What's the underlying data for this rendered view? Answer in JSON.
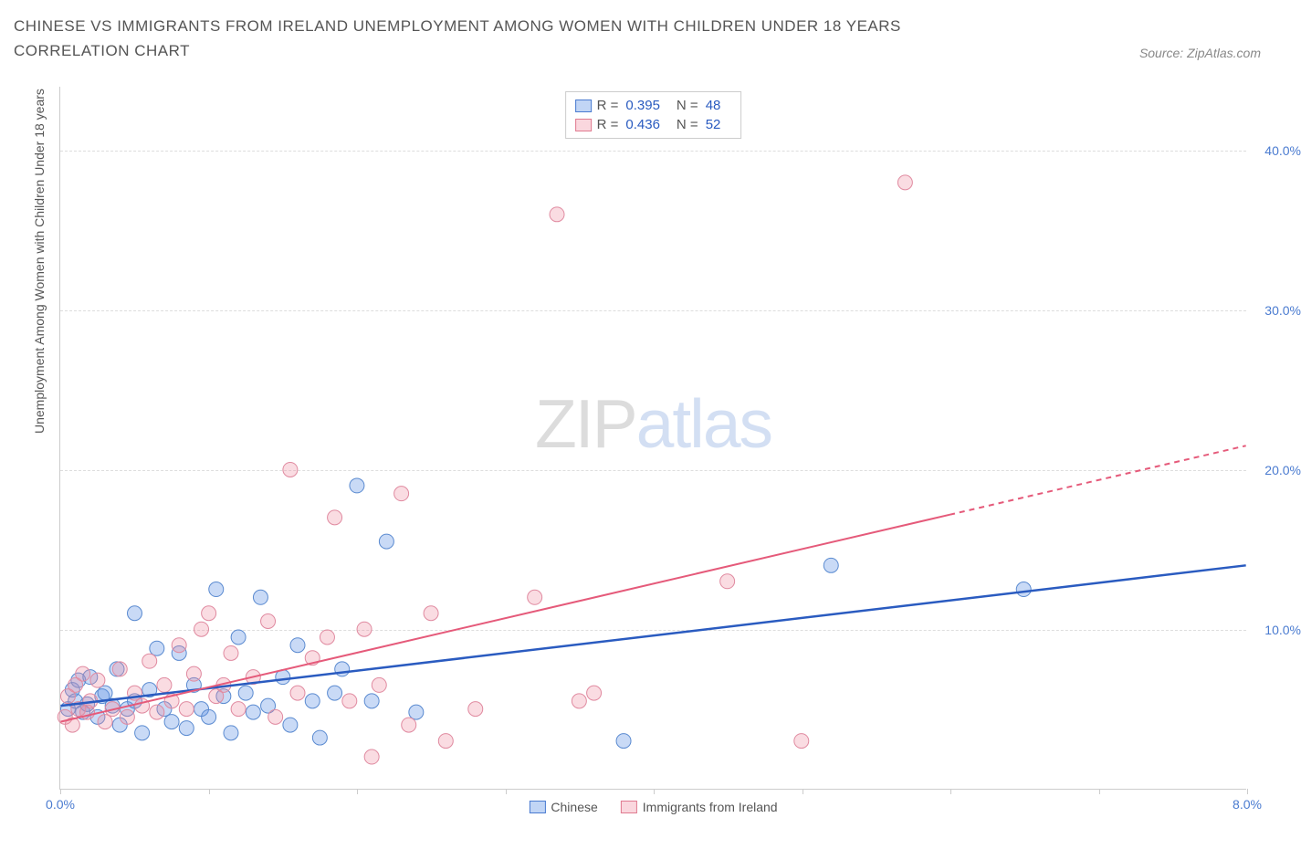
{
  "title": "CHINESE VS IMMIGRANTS FROM IRELAND UNEMPLOYMENT AMONG WOMEN WITH CHILDREN UNDER 18 YEARS CORRELATION CHART",
  "source": "Source: ZipAtlas.com",
  "y_axis_label": "Unemployment Among Women with Children Under 18 years",
  "watermark_a": "ZIP",
  "watermark_b": "atlas",
  "chart": {
    "type": "scatter-with-regression",
    "x_domain": [
      0.0,
      8.0
    ],
    "y_domain": [
      0.0,
      44.0
    ],
    "y_ticks": [
      10.0,
      20.0,
      30.0,
      40.0
    ],
    "y_tick_labels": [
      "10.0%",
      "20.0%",
      "30.0%",
      "40.0%"
    ],
    "x_ticks": [
      0.0,
      1.0,
      2.0,
      3.0,
      4.0,
      5.0,
      6.0,
      7.0,
      8.0
    ],
    "x_tick_labels_shown": {
      "0.0": "0.0%",
      "8.0": "8.0%"
    },
    "marker_radius": 8,
    "background_color": "#ffffff",
    "grid_color": "#dddddd",
    "colors": {
      "blue_fill": "rgba(100,150,230,0.35)",
      "blue_stroke": "#5a8ad0",
      "pink_fill": "rgba(240,140,160,0.3)",
      "pink_stroke": "#e08aa0",
      "reg_blue": "#2a5bc0",
      "reg_pink": "#e55a7a"
    },
    "series": [
      {
        "name": "Chinese",
        "color_key": "blue",
        "R": 0.395,
        "N": 48,
        "regression": {
          "x1": 0.0,
          "y1": 5.2,
          "x2": 8.0,
          "y2": 14.0,
          "dash_from_x": null
        },
        "points": [
          [
            0.05,
            5.0
          ],
          [
            0.08,
            6.2
          ],
          [
            0.1,
            5.5
          ],
          [
            0.12,
            6.8
          ],
          [
            0.15,
            4.8
          ],
          [
            0.18,
            5.3
          ],
          [
            0.2,
            7.0
          ],
          [
            0.25,
            4.5
          ],
          [
            0.28,
            5.8
          ],
          [
            0.3,
            6.0
          ],
          [
            0.35,
            5.2
          ],
          [
            0.38,
            7.5
          ],
          [
            0.4,
            4.0
          ],
          [
            0.45,
            5.0
          ],
          [
            0.5,
            11.0
          ],
          [
            0.5,
            5.5
          ],
          [
            0.55,
            3.5
          ],
          [
            0.6,
            6.2
          ],
          [
            0.65,
            8.8
          ],
          [
            0.7,
            5.0
          ],
          [
            0.75,
            4.2
          ],
          [
            0.8,
            8.5
          ],
          [
            0.85,
            3.8
          ],
          [
            0.9,
            6.5
          ],
          [
            0.95,
            5.0
          ],
          [
            1.0,
            4.5
          ],
          [
            1.05,
            12.5
          ],
          [
            1.1,
            5.8
          ],
          [
            1.15,
            3.5
          ],
          [
            1.2,
            9.5
          ],
          [
            1.25,
            6.0
          ],
          [
            1.3,
            4.8
          ],
          [
            1.35,
            12.0
          ],
          [
            1.4,
            5.2
          ],
          [
            1.5,
            7.0
          ],
          [
            1.55,
            4.0
          ],
          [
            1.6,
            9.0
          ],
          [
            1.7,
            5.5
          ],
          [
            1.75,
            3.2
          ],
          [
            1.85,
            6.0
          ],
          [
            2.0,
            19.0
          ],
          [
            2.1,
            5.5
          ],
          [
            2.2,
            15.5
          ],
          [
            2.4,
            4.8
          ],
          [
            3.8,
            3.0
          ],
          [
            5.2,
            14.0
          ],
          [
            6.5,
            12.5
          ],
          [
            1.9,
            7.5
          ]
        ]
      },
      {
        "name": "Immigrants from Ireland",
        "color_key": "pink",
        "R": 0.436,
        "N": 52,
        "regression": {
          "x1": 0.0,
          "y1": 4.2,
          "x2": 8.0,
          "y2": 21.5,
          "dash_from_x": 6.0
        },
        "points": [
          [
            0.03,
            4.5
          ],
          [
            0.05,
            5.8
          ],
          [
            0.08,
            4.0
          ],
          [
            0.1,
            6.5
          ],
          [
            0.12,
            5.0
          ],
          [
            0.15,
            7.2
          ],
          [
            0.18,
            4.8
          ],
          [
            0.2,
            5.5
          ],
          [
            0.25,
            6.8
          ],
          [
            0.3,
            4.2
          ],
          [
            0.35,
            5.0
          ],
          [
            0.4,
            7.5
          ],
          [
            0.45,
            4.5
          ],
          [
            0.5,
            6.0
          ],
          [
            0.55,
            5.2
          ],
          [
            0.6,
            8.0
          ],
          [
            0.65,
            4.8
          ],
          [
            0.7,
            6.5
          ],
          [
            0.75,
            5.5
          ],
          [
            0.8,
            9.0
          ],
          [
            0.85,
            5.0
          ],
          [
            0.9,
            7.2
          ],
          [
            0.95,
            10.0
          ],
          [
            1.0,
            11.0
          ],
          [
            1.05,
            5.8
          ],
          [
            1.1,
            6.5
          ],
          [
            1.15,
            8.5
          ],
          [
            1.2,
            5.0
          ],
          [
            1.3,
            7.0
          ],
          [
            1.4,
            10.5
          ],
          [
            1.45,
            4.5
          ],
          [
            1.55,
            20.0
          ],
          [
            1.6,
            6.0
          ],
          [
            1.7,
            8.2
          ],
          [
            1.8,
            9.5
          ],
          [
            1.85,
            17.0
          ],
          [
            1.95,
            5.5
          ],
          [
            2.05,
            10.0
          ],
          [
            2.1,
            2.0
          ],
          [
            2.15,
            6.5
          ],
          [
            2.3,
            18.5
          ],
          [
            2.35,
            4.0
          ],
          [
            2.5,
            11.0
          ],
          [
            2.6,
            3.0
          ],
          [
            2.8,
            5.0
          ],
          [
            3.2,
            12.0
          ],
          [
            3.35,
            36.0
          ],
          [
            3.5,
            5.5
          ],
          [
            3.6,
            6.0
          ],
          [
            4.5,
            13.0
          ],
          [
            5.0,
            3.0
          ],
          [
            5.7,
            38.0
          ]
        ]
      }
    ]
  },
  "legend_top": {
    "r_label": "R =",
    "n_label": "N ="
  },
  "legend_bottom": [
    {
      "swatch": "blue",
      "label": "Chinese"
    },
    {
      "swatch": "pink",
      "label": "Immigrants from Ireland"
    }
  ]
}
